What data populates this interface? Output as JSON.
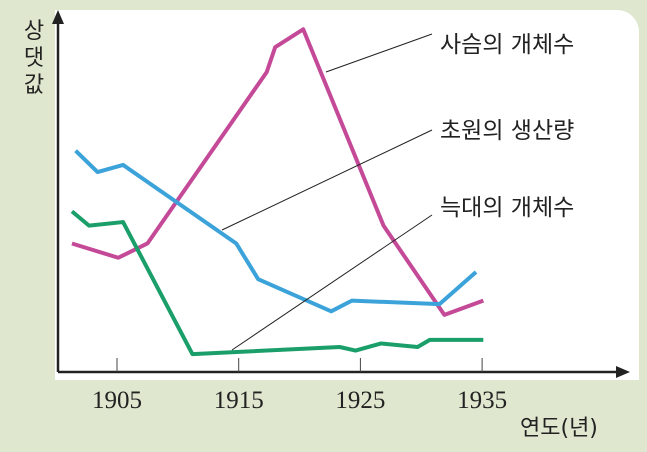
{
  "chart_data": {
    "type": "line",
    "title": "",
    "xlabel": "연도(년)",
    "ylabel": "상댓값",
    "xlim": [
      1900,
      1945
    ],
    "ylim": [
      0,
      100
    ],
    "xticks": [
      1905,
      1915,
      1925,
      1935
    ],
    "grid": false,
    "legend": "inline-labels-right",
    "series": [
      {
        "name": "사슴의 개체수",
        "color": "#c44a98",
        "x": [
          1901.3,
          1905.1,
          1907.5,
          1917.3,
          1918,
          1920.3,
          1926.9,
          1931.9,
          1935.1
        ],
        "y": [
          36,
          32,
          36,
          84,
          91,
          96,
          41,
          16,
          20
        ]
      },
      {
        "name": "초원의 생산량",
        "color": "#3ba3d9",
        "x": [
          1901.6,
          1903.4,
          1905.5,
          1914.8,
          1916.6,
          1922.6,
          1924.3,
          1931.5,
          1934.5
        ],
        "y": [
          62,
          56,
          58,
          36,
          26,
          17,
          20,
          19,
          28
        ]
      },
      {
        "name": "늑대의 개체수",
        "color": "#1a9e6a",
        "x": [
          1901.3,
          1902.7,
          1905.5,
          1911.2,
          1923.3,
          1924.6,
          1926.7,
          1929.7,
          1930.7,
          1935.1
        ],
        "y": [
          45,
          41,
          42,
          5,
          7,
          6,
          8,
          7,
          9,
          9
        ]
      }
    ]
  }
}
